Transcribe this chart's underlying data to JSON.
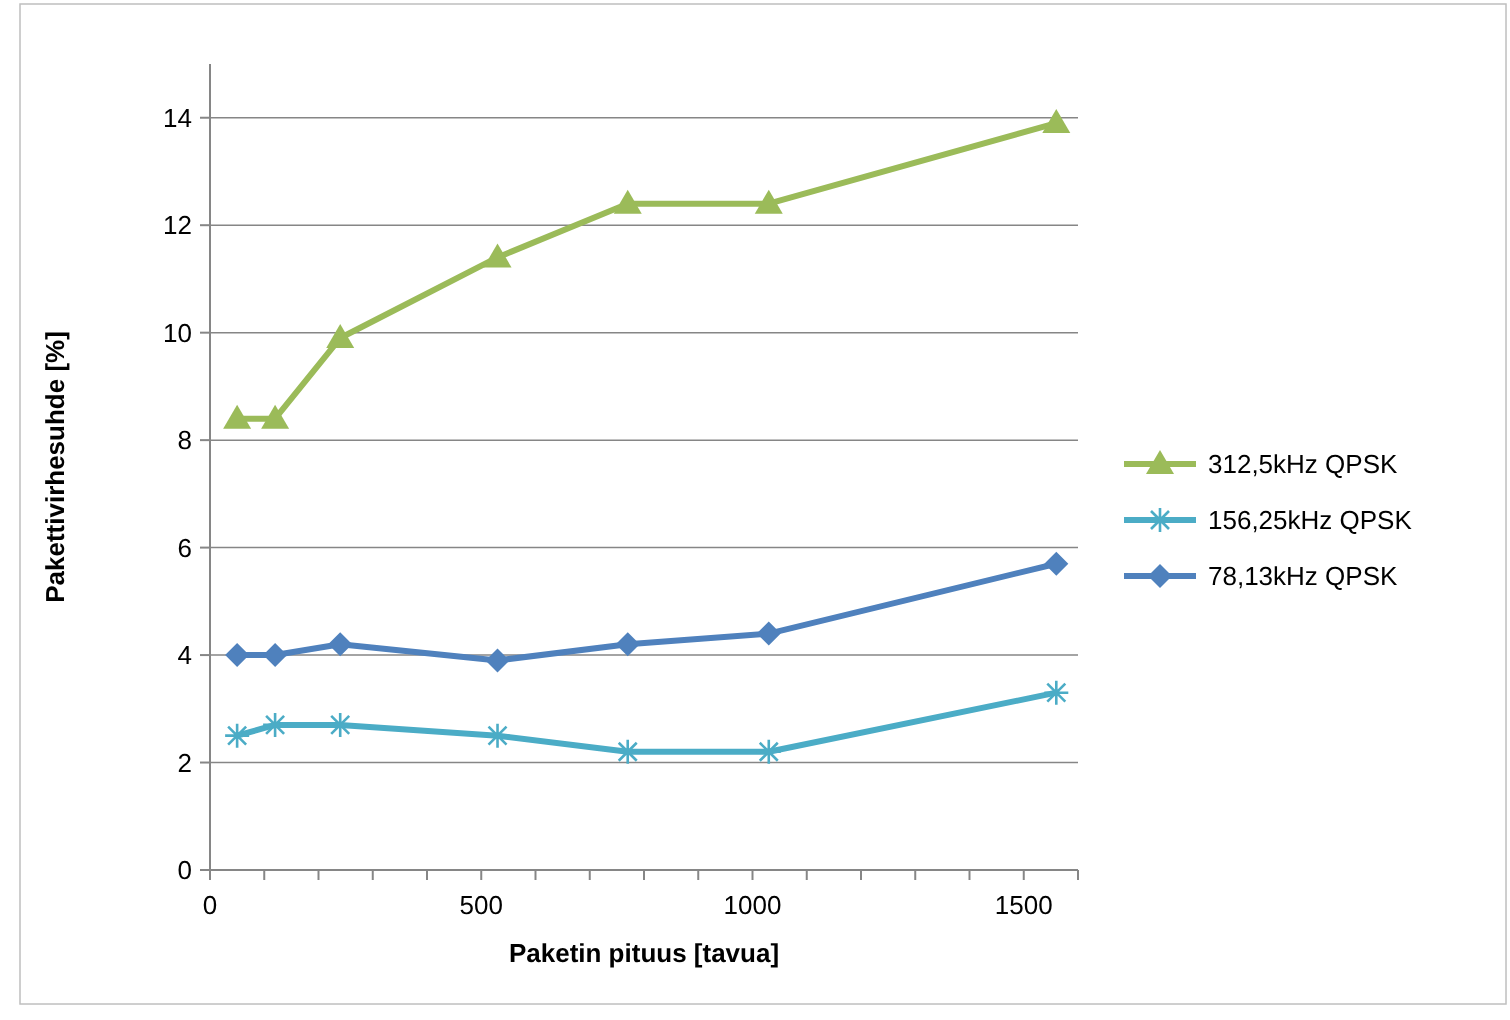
{
  "chart_data": {
    "type": "line",
    "xlabel": "Paketin pituus [tavua]",
    "ylabel": "Pakettivirhesuhde [%]",
    "x": [
      50,
      120,
      240,
      530,
      770,
      1030,
      1560
    ],
    "series": [
      {
        "name": "312,5kHz QPSK",
        "color": "#9bbb59",
        "marker": "triangle",
        "values": [
          8.4,
          8.4,
          9.9,
          11.4,
          12.4,
          12.4,
          13.9
        ]
      },
      {
        "name": "156,25kHz QPSK",
        "color": "#4bacc6",
        "marker": "cross",
        "values": [
          2.5,
          2.7,
          2.7,
          2.5,
          2.2,
          2.2,
          3.3
        ]
      },
      {
        "name": "78,13kHz QPSK",
        "color": "#4f81bd",
        "marker": "diamond",
        "values": [
          4.0,
          4.0,
          4.2,
          3.9,
          4.2,
          4.4,
          5.7
        ]
      }
    ],
    "xlim": [
      0,
      1600
    ],
    "xticks": [
      0,
      500,
      1000,
      1500
    ],
    "ylim": [
      0,
      15
    ],
    "yticks": [
      0,
      2,
      4,
      6,
      8,
      10,
      12,
      14
    ],
    "grid": "y",
    "legend": "right"
  }
}
